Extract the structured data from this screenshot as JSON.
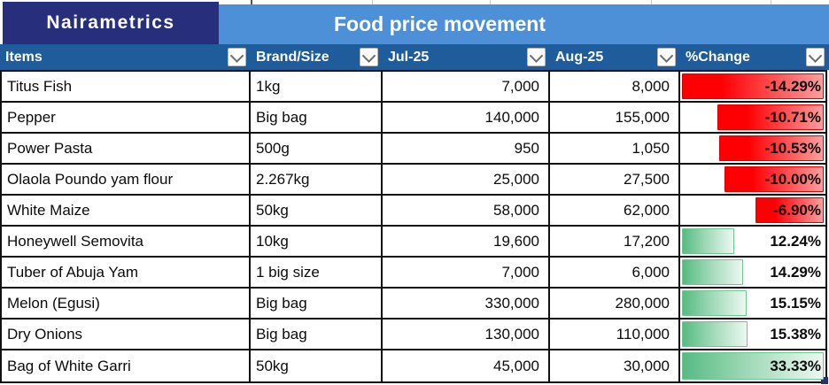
{
  "brand": {
    "logo_text": "Nairametrics"
  },
  "title": "Food price movement",
  "columns": [
    {
      "label": "Items"
    },
    {
      "label": "Brand/Size"
    },
    {
      "label": "Jul-25"
    },
    {
      "label": "Aug-25"
    },
    {
      "label": "%Change"
    }
  ],
  "rows": [
    {
      "item": "Titus Fish",
      "size": "1kg",
      "jul": "7,000",
      "aug": "8,000",
      "change": "-14.29%",
      "change_value": -14.29
    },
    {
      "item": "Pepper",
      "size": "Big bag",
      "jul": "140,000",
      "aug": "155,000",
      "change": "-10.71%",
      "change_value": -10.71
    },
    {
      "item": "Power Pasta",
      "size": "500g",
      "jul": "950",
      "aug": "1,050",
      "change": "-10.53%",
      "change_value": -10.53
    },
    {
      "item": "Olaola Poundo yam flour",
      "size": "2.267kg",
      "jul": "25,000",
      "aug": "27,500",
      "change": "-10.00%",
      "change_value": -10.0
    },
    {
      "item": "White Maize",
      "size": "50kg",
      "jul": "58,000",
      "aug": "62,000",
      "change": "-6.90%",
      "change_value": -6.9
    },
    {
      "item": "Honeywell Semovita",
      "size": "10kg",
      "jul": "19,600",
      "aug": "17,200",
      "change": "12.24%",
      "change_value": 12.24
    },
    {
      "item": "Tuber of Abuja Yam",
      "size": "1 big size",
      "jul": "7,000",
      "aug": "6,000",
      "change": "14.29%",
      "change_value": 14.29
    },
    {
      "item": "Melon (Egusi)",
      "size": "Big bag",
      "jul": "330,000",
      "aug": "280,000",
      "change": "15.15%",
      "change_value": 15.15
    },
    {
      "item": "Dry Onions",
      "size": "Big bag",
      "jul": "130,000",
      "aug": "110,000",
      "change": "15.38%",
      "change_value": 15.38
    },
    {
      "item": "Bag of White Garri",
      "size": "50kg",
      "jul": "45,000",
      "aug": "30,000",
      "change": "33.33%",
      "change_value": 33.33
    }
  ],
  "colors": {
    "navy": "#272f7d",
    "banner": "#4d90d7",
    "header_blue": "#1e5c9c",
    "grid": "#111111",
    "red": "#fe0004",
    "red_fade": "#ff9e9e",
    "red_border": "#dd0000",
    "green": "#56bb81",
    "green_mid": "#9ed8b6",
    "green_fade": "#ecf8f1",
    "green_border": "#72c492"
  }
}
